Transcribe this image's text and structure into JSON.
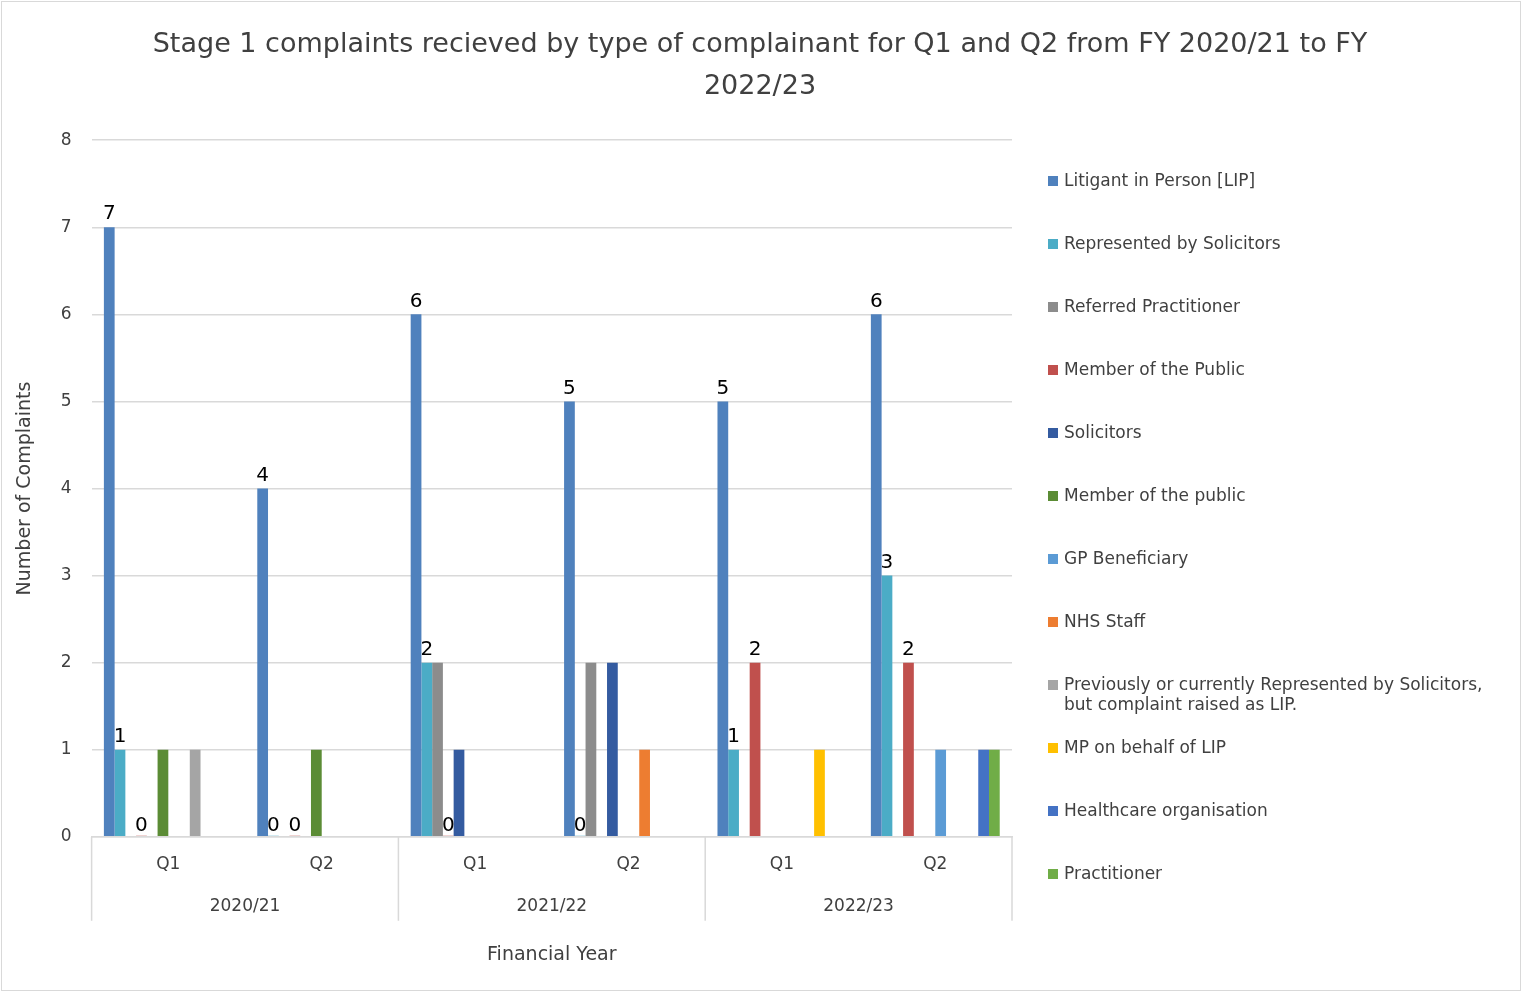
{
  "chart_data": {
    "type": "bar",
    "title": "Stage 1 complaints recieved by type of complainant for Q1 and Q2 from  FY 2020/21 to FY 2022/23",
    "xlabel": "Financial Year",
    "ylabel": "Number of Complaints",
    "categories": [
      "Q1",
      "Q2",
      "Q1",
      "Q2",
      "Q1",
      "Q2"
    ],
    "annotations": [
      "2020/21",
      "2021/22",
      "2022/23"
    ],
    "ylim": [
      0,
      8
    ],
    "yticks": [
      0,
      1,
      2,
      3,
      4,
      5,
      6,
      7,
      8
    ],
    "grid": "y",
    "legend": "right",
    "series": [
      {
        "name": "Litigant in Person [LIP]",
        "color": "#4f81bd",
        "values": [
          7,
          4,
          6,
          5,
          5,
          6
        ],
        "value_labels": [
          "7",
          "4",
          "6",
          "5",
          "5",
          "6"
        ]
      },
      {
        "name": "Represented by Solicitors",
        "color": "#4bacc6",
        "values": [
          1,
          0,
          2,
          0,
          1,
          3
        ],
        "value_labels": [
          "1",
          "0",
          "2",
          "0",
          "1",
          "3"
        ]
      },
      {
        "name": "Referred Practitioner",
        "color": "#8c8c8c",
        "values": [
          0,
          0,
          2,
          2,
          0,
          0
        ]
      },
      {
        "name": "Member of the Public",
        "color": "#c0504d",
        "values": [
          0,
          0,
          0,
          null,
          2,
          2
        ],
        "value_labels": [
          "0",
          "0",
          "0",
          null,
          "2",
          "2"
        ]
      },
      {
        "name": "Solicitors",
        "color": "#345ba0",
        "values": [
          0,
          0,
          1,
          2,
          0,
          0
        ]
      },
      {
        "name": "Member of the public",
        "color": "#5b8c35",
        "values": [
          1,
          1,
          0,
          0,
          0,
          0
        ]
      },
      {
        "name": "GP Beneficiary",
        "color": "#5b9bd5",
        "values": [
          0,
          0,
          0,
          0,
          0,
          1
        ]
      },
      {
        "name": "NHS Staff",
        "color": "#ed7d31",
        "values": [
          0,
          0,
          0,
          1,
          0,
          0
        ]
      },
      {
        "name": "Previously or currently Represented by Solicitors, but complaint raised as LIP.",
        "color": "#a5a5a5",
        "values": [
          1,
          0,
          0,
          0,
          0,
          0
        ]
      },
      {
        "name": "MP on behalf of LIP",
        "color": "#ffc000",
        "values": [
          0,
          0,
          0,
          0,
          1,
          0
        ]
      },
      {
        "name": "Healthcare organisation",
        "color": "#4472c4",
        "values": [
          0,
          0,
          0,
          0,
          0,
          1
        ]
      },
      {
        "name": "Practitioner",
        "color": "#70ad47",
        "values": [
          0,
          0,
          0,
          0,
          0,
          1
        ]
      }
    ]
  }
}
